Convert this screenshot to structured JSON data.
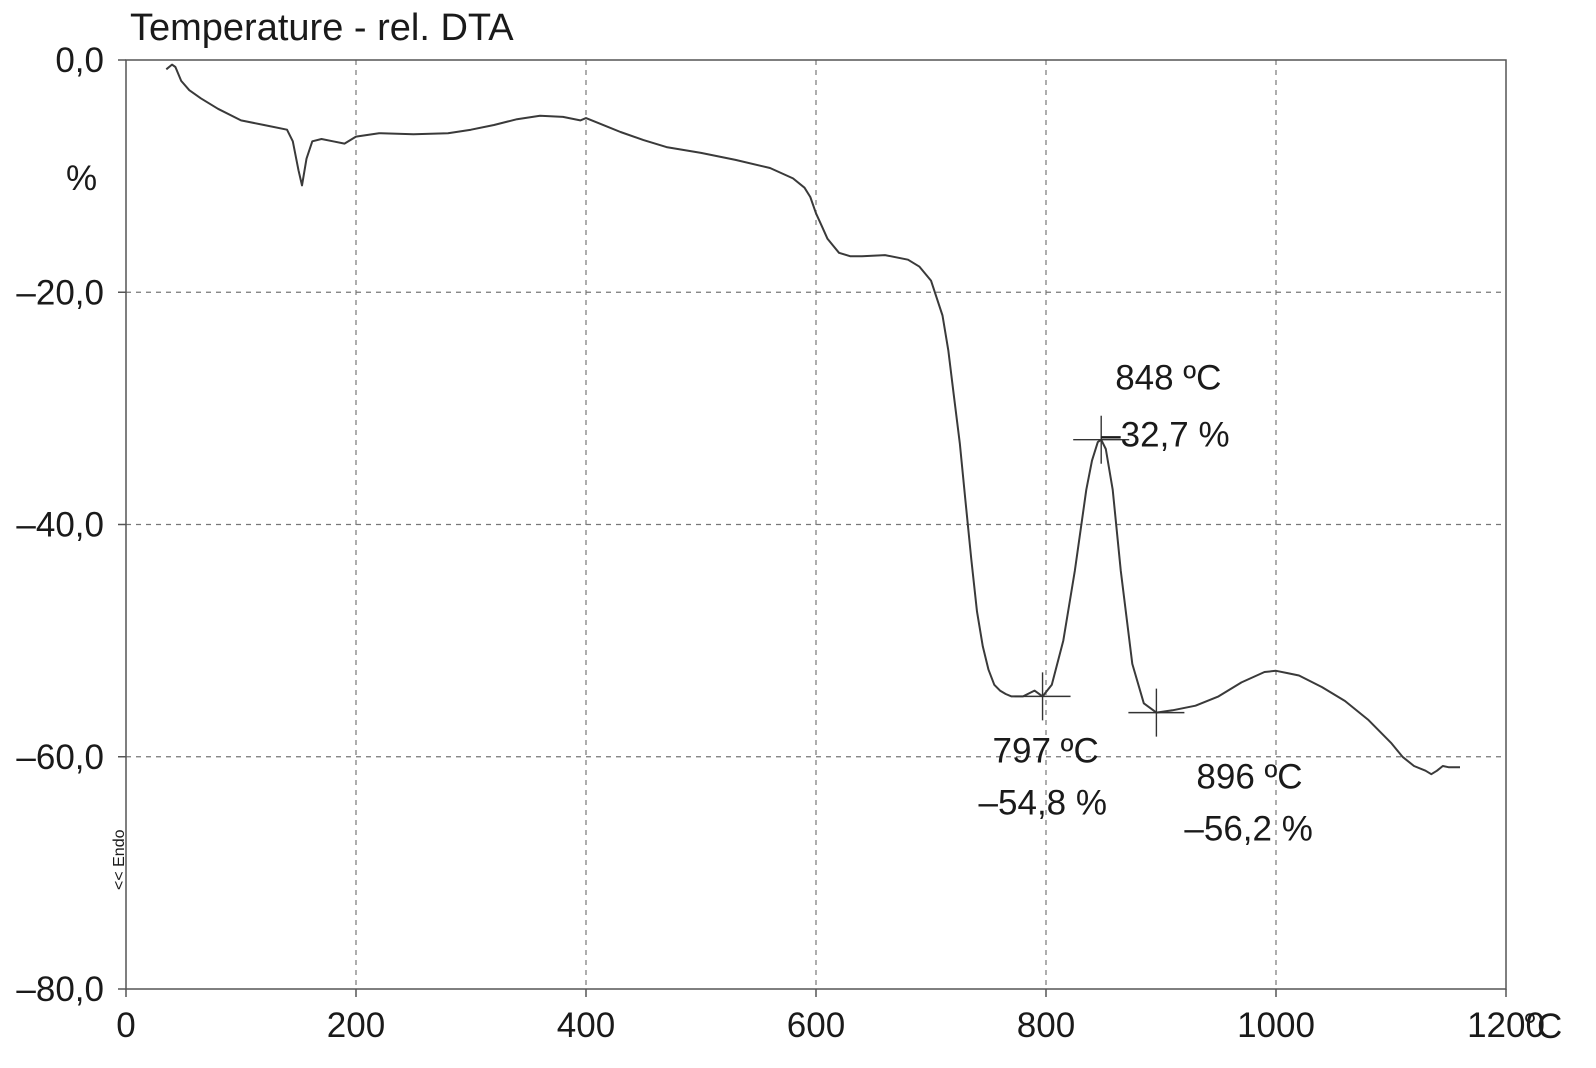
{
  "chart_data": {
    "type": "line",
    "title": "Temperature - rel. DTA",
    "ylabel": "%",
    "x_unit": "°C",
    "endo_label": "<< Endo",
    "xlim": [
      0,
      1200
    ],
    "ylim": [
      -80,
      0
    ],
    "x_ticks": [
      0,
      200,
      400,
      600,
      800,
      1000,
      1200
    ],
    "x_tick_labels": [
      "0",
      "200",
      "400",
      "600",
      "800",
      "1000",
      "1200"
    ],
    "y_ticks": [
      0,
      -20,
      -40,
      -60,
      -80
    ],
    "y_tick_labels": [
      "0,0",
      "–20,0",
      "–40,0",
      "–60,0",
      "–80,0"
    ],
    "grid": true,
    "series": [
      {
        "x": [
          35,
          40,
          43,
          48,
          55,
          65,
          80,
          100,
          120,
          140,
          145,
          150,
          153,
          157,
          162,
          170,
          180,
          190,
          200,
          220,
          250,
          280,
          300,
          320,
          340,
          360,
          380,
          395,
          400,
          410,
          430,
          450,
          470,
          500,
          530,
          560,
          580,
          590,
          595,
          600,
          605,
          610,
          615,
          620,
          630,
          640,
          660,
          680,
          690,
          700,
          710,
          715,
          720,
          725,
          730,
          735,
          740,
          745,
          750,
          755,
          760,
          765,
          770,
          780,
          790,
          797,
          805,
          815,
          825,
          835,
          840,
          845,
          848,
          852,
          858,
          865,
          875,
          885,
          896,
          910,
          930,
          950,
          970,
          990,
          1000,
          1010,
          1020,
          1040,
          1060,
          1080,
          1100,
          1110,
          1120,
          1130,
          1135,
          1140,
          1145,
          1150,
          1160
        ],
        "y": [
          -0.8,
          -0.4,
          -0.6,
          -1.8,
          -2.6,
          -3.3,
          -4.2,
          -5.2,
          -5.6,
          -6.0,
          -7.0,
          -9.5,
          -10.8,
          -8.5,
          -7.0,
          -6.8,
          -7.0,
          -7.2,
          -6.6,
          -6.3,
          -6.4,
          -6.3,
          -6.0,
          -5.6,
          -5.1,
          -4.8,
          -4.9,
          -5.2,
          -5.0,
          -5.4,
          -6.2,
          -6.9,
          -7.5,
          -8.0,
          -8.6,
          -9.3,
          -10.2,
          -11.0,
          -11.8,
          -13.2,
          -14.3,
          -15.4,
          -16.0,
          -16.6,
          -16.9,
          -16.9,
          -16.8,
          -17.2,
          -17.8,
          -19.0,
          -22.0,
          -25.0,
          -29.0,
          -33.0,
          -38.0,
          -43.0,
          -47.5,
          -50.5,
          -52.5,
          -53.8,
          -54.3,
          -54.6,
          -54.8,
          -54.8,
          -54.3,
          -54.8,
          -53.8,
          -50.0,
          -44.0,
          -37.0,
          -34.5,
          -32.9,
          -32.7,
          -33.5,
          -37.0,
          -44.0,
          -52.0,
          -55.4,
          -56.2,
          -56.0,
          -55.6,
          -54.8,
          -53.6,
          -52.7,
          -52.6,
          -52.8,
          -53.0,
          -54.0,
          -55.2,
          -56.8,
          -58.8,
          -60.0,
          -60.8,
          -61.2,
          -61.5,
          -61.2,
          -60.8,
          -60.9,
          -60.9
        ]
      }
    ],
    "annotations": [
      {
        "x": 848,
        "y": -32.7,
        "line1": "848 ºC",
        "line2": "–32,7 %",
        "place": "upper-right"
      },
      {
        "x": 797,
        "y": -54.8,
        "line1": "797 ºC",
        "line2": "–54,8 %",
        "place": "below"
      },
      {
        "x": 896,
        "y": -56.2,
        "line1": "896 ºC",
        "line2": "–56,2 %",
        "place": "below-right"
      }
    ]
  }
}
